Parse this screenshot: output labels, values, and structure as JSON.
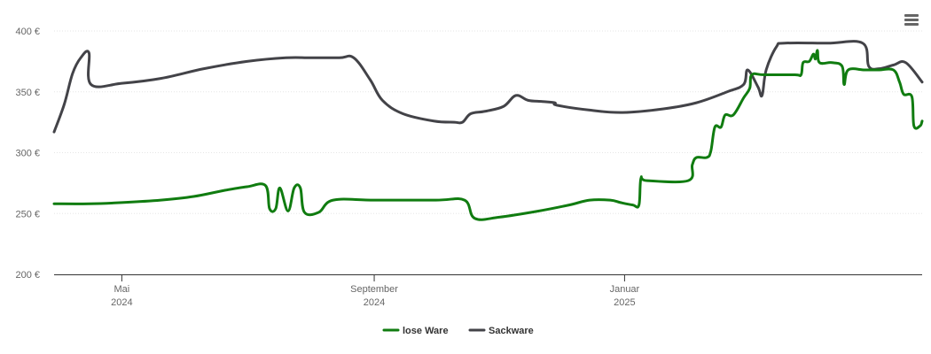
{
  "menu": {
    "icon": "hamburger-menu-icon"
  },
  "colors": {
    "lose_ware": "#107c10",
    "sackware": "#434348",
    "grid": "#e6e6e6",
    "axis": "#333333"
  },
  "chart_data": {
    "type": "line",
    "title": "",
    "xlabel": "",
    "ylabel": "",
    "ylim": [
      200,
      400
    ],
    "xlim": [
      "2024-03-29",
      "2025-05-26"
    ],
    "y_ticks": [
      {
        "value": 200,
        "label": "200 €"
      },
      {
        "value": 250,
        "label": "250 €"
      },
      {
        "value": 300,
        "label": "300 €"
      },
      {
        "value": 350,
        "label": "350 €"
      },
      {
        "value": 400,
        "label": "400 €"
      }
    ],
    "x_ticks": [
      {
        "date": "2024-05-01",
        "month": "Mai",
        "year": "2024"
      },
      {
        "date": "2024-09-01",
        "month": "September",
        "year": "2024"
      },
      {
        "date": "2025-01-01",
        "month": "Januar",
        "year": "2025"
      }
    ],
    "legend": {
      "position": "bottom-center",
      "items": [
        {
          "name": "lose Ware",
          "color": "#107c10"
        },
        {
          "name": "Sackware",
          "color": "#434348"
        }
      ]
    },
    "series": [
      {
        "name": "lose Ware",
        "color": "#107c10",
        "points": [
          [
            "2024-03-29",
            258
          ],
          [
            "2024-04-15",
            258
          ],
          [
            "2024-05-01",
            259
          ],
          [
            "2024-05-20",
            261
          ],
          [
            "2024-06-05",
            264
          ],
          [
            "2024-06-20",
            269
          ],
          [
            "2024-07-01",
            272
          ],
          [
            "2024-07-10",
            273
          ],
          [
            "2024-07-12",
            254
          ],
          [
            "2024-07-15",
            254
          ],
          [
            "2024-07-17",
            271
          ],
          [
            "2024-07-21",
            252
          ],
          [
            "2024-07-24",
            271
          ],
          [
            "2024-07-27",
            271
          ],
          [
            "2024-07-29",
            251
          ],
          [
            "2024-08-05",
            251
          ],
          [
            "2024-08-12",
            261
          ],
          [
            "2024-09-01",
            261
          ],
          [
            "2024-10-01",
            261
          ],
          [
            "2024-10-15",
            261
          ],
          [
            "2024-10-20",
            246
          ],
          [
            "2024-11-01",
            247
          ],
          [
            "2024-11-20",
            252
          ],
          [
            "2024-12-05",
            257
          ],
          [
            "2024-12-15",
            261
          ],
          [
            "2024-12-25",
            261
          ],
          [
            "2024-12-30",
            259
          ],
          [
            "2025-01-05",
            257
          ],
          [
            "2025-01-08",
            257
          ],
          [
            "2025-01-09",
            279
          ],
          [
            "2025-01-12",
            277
          ],
          [
            "2025-02-01",
            277
          ],
          [
            "2025-02-03",
            290
          ],
          [
            "2025-02-05",
            296
          ],
          [
            "2025-02-10",
            296
          ],
          [
            "2025-02-12",
            301
          ],
          [
            "2025-02-14",
            321
          ],
          [
            "2025-02-17",
            321
          ],
          [
            "2025-02-19",
            331
          ],
          [
            "2025-02-23",
            331
          ],
          [
            "2025-02-28",
            345
          ],
          [
            "2025-03-03",
            353
          ],
          [
            "2025-03-04",
            364
          ],
          [
            "2025-03-10",
            364
          ],
          [
            "2025-03-25",
            364
          ],
          [
            "2025-03-28",
            364
          ],
          [
            "2025-03-29",
            374
          ],
          [
            "2025-04-01",
            375
          ],
          [
            "2025-04-03",
            381
          ],
          [
            "2025-04-04",
            377
          ],
          [
            "2025-04-05",
            384
          ],
          [
            "2025-04-06",
            374
          ],
          [
            "2025-04-12",
            374
          ],
          [
            "2025-04-17",
            371
          ],
          [
            "2025-04-18",
            356
          ],
          [
            "2025-04-20",
            368
          ],
          [
            "2025-04-28",
            368
          ],
          [
            "2025-05-05",
            368
          ],
          [
            "2025-05-12",
            368
          ],
          [
            "2025-05-15",
            358
          ],
          [
            "2025-05-17",
            348
          ],
          [
            "2025-05-21",
            346
          ],
          [
            "2025-05-22",
            322
          ],
          [
            "2025-05-25",
            322
          ],
          [
            "2025-05-26",
            326
          ]
        ]
      },
      {
        "name": "Sackware",
        "color": "#434348",
        "points": [
          [
            "2024-03-29",
            317
          ],
          [
            "2024-04-03",
            340
          ],
          [
            "2024-04-07",
            365
          ],
          [
            "2024-04-11",
            378
          ],
          [
            "2024-04-15",
            382
          ],
          [
            "2024-04-16",
            356
          ],
          [
            "2024-05-01",
            357
          ],
          [
            "2024-05-20",
            361
          ],
          [
            "2024-06-10",
            369
          ],
          [
            "2024-07-01",
            375
          ],
          [
            "2024-07-20",
            378
          ],
          [
            "2024-08-01",
            378
          ],
          [
            "2024-08-15",
            378
          ],
          [
            "2024-08-22",
            378
          ],
          [
            "2024-08-30",
            360
          ],
          [
            "2024-09-05",
            343
          ],
          [
            "2024-09-15",
            332
          ],
          [
            "2024-09-30",
            326
          ],
          [
            "2024-10-10",
            325
          ],
          [
            "2024-10-14",
            325
          ],
          [
            "2024-10-18",
            332
          ],
          [
            "2024-10-25",
            334
          ],
          [
            "2024-11-03",
            338
          ],
          [
            "2024-11-09",
            347
          ],
          [
            "2024-11-15",
            343
          ],
          [
            "2024-11-22",
            342
          ],
          [
            "2024-11-28",
            341
          ],
          [
            "2024-11-29",
            339
          ],
          [
            "2024-12-15",
            335
          ],
          [
            "2024-12-31",
            333
          ],
          [
            "2025-01-20",
            336
          ],
          [
            "2025-02-05",
            341
          ],
          [
            "2025-02-20",
            350
          ],
          [
            "2025-02-28",
            356
          ],
          [
            "2025-03-02",
            368
          ],
          [
            "2025-03-07",
            354
          ],
          [
            "2025-03-09",
            347
          ],
          [
            "2025-03-11",
            368
          ],
          [
            "2025-03-16",
            387
          ],
          [
            "2025-03-20",
            390
          ],
          [
            "2025-04-10",
            390
          ],
          [
            "2025-04-27",
            390
          ],
          [
            "2025-04-30",
            371
          ],
          [
            "2025-05-05",
            369
          ],
          [
            "2025-05-12",
            372
          ],
          [
            "2025-05-18",
            374
          ],
          [
            "2025-05-26",
            358
          ]
        ]
      }
    ]
  }
}
